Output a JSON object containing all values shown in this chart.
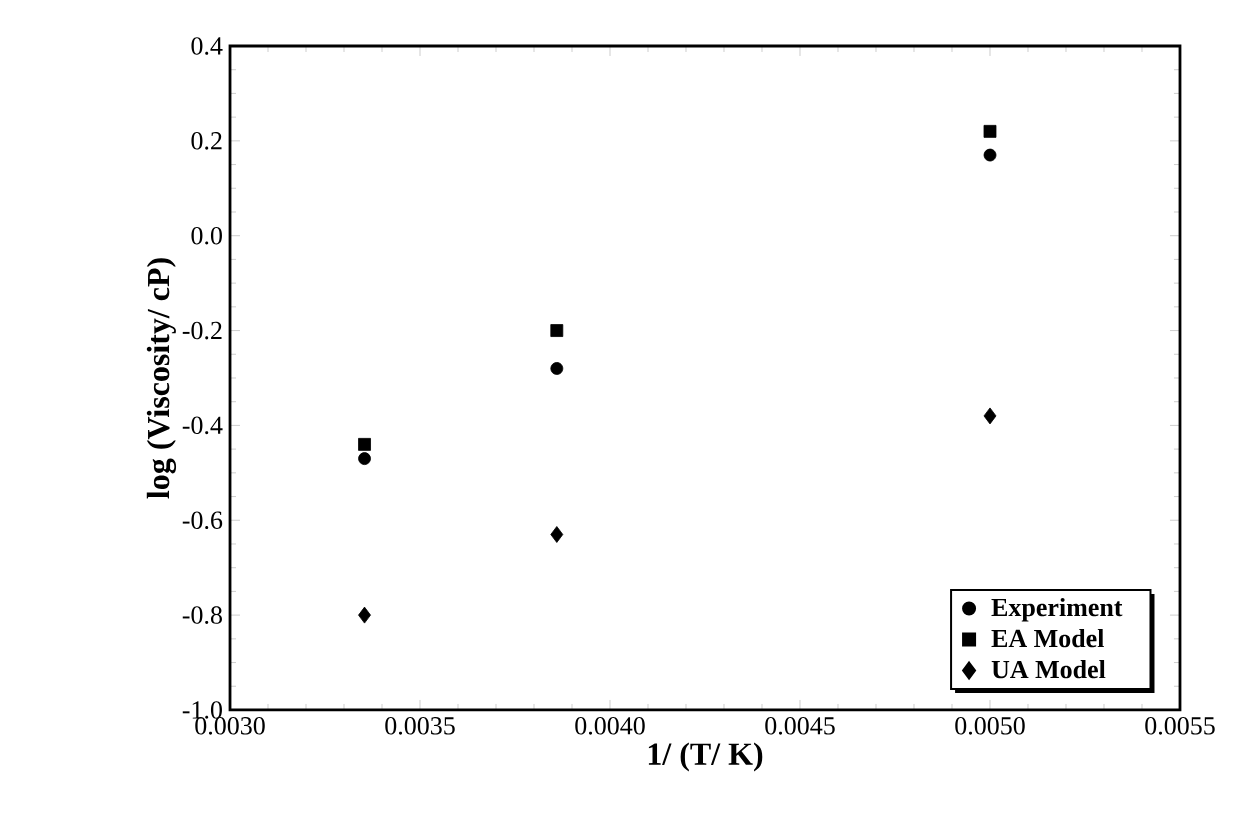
{
  "chart_data": {
    "type": "scatter",
    "xlabel": "1/ (T/ K)",
    "ylabel": "log (Viscosity/ cP)",
    "xlim": [
      0.003,
      0.0055
    ],
    "ylim": [
      -1.0,
      0.4
    ],
    "xticks": [
      {
        "value": 0.003,
        "label": "0.0030"
      },
      {
        "value": 0.0035,
        "label": "0.0035"
      },
      {
        "value": 0.004,
        "label": "0.0040"
      },
      {
        "value": 0.0045,
        "label": "0.0045"
      },
      {
        "value": 0.005,
        "label": "0.0050"
      },
      {
        "value": 0.0055,
        "label": "0.0055"
      }
    ],
    "yticks": [
      {
        "value": -1.0,
        "label": "-1.0"
      },
      {
        "value": -0.8,
        "label": "-0.8"
      },
      {
        "value": -0.6,
        "label": "-0.6"
      },
      {
        "value": -0.4,
        "label": "-0.4"
      },
      {
        "value": -0.2,
        "label": "-0.2"
      },
      {
        "value": 0.0,
        "label": "0.0"
      },
      {
        "value": 0.2,
        "label": "0.2"
      },
      {
        "value": 0.4,
        "label": "0.4"
      }
    ],
    "x": [
      0.003354,
      0.00386,
      0.005
    ],
    "series": [
      {
        "name": "Experiment",
        "color": "#000000",
        "marker": "circle",
        "values": [
          -0.47,
          -0.28,
          0.17
        ]
      },
      {
        "name": "EA Model",
        "color": "#000000",
        "marker": "square",
        "values": [
          -0.44,
          -0.2,
          0.22
        ]
      },
      {
        "name": "UA Model",
        "color": "#000000",
        "marker": "diamond",
        "values": [
          -0.8,
          -0.63,
          -0.38
        ]
      }
    ],
    "grid": false,
    "legend": "bottom right"
  }
}
